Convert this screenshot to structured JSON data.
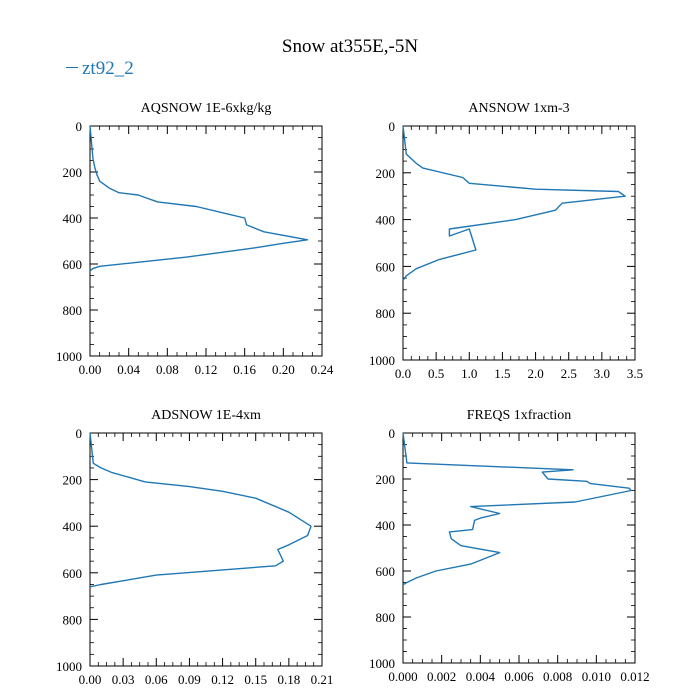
{
  "figure": {
    "title": "Snow at355E,-5N",
    "legend": {
      "label": "zt92_2",
      "color": "#1f77b4"
    }
  },
  "chart_data": [
    {
      "type": "line",
      "title": "AQSNOW  1E-6xkg/kg",
      "xlim": [
        0,
        0.24
      ],
      "xticks": [
        0,
        0.04,
        0.08,
        0.12,
        0.16,
        0.2,
        0.24
      ],
      "xtick_labels": [
        "0.00",
        "0.04",
        "0.08",
        "0.12",
        "0.16",
        "0.20",
        "0.24"
      ],
      "ylim": [
        1000,
        0
      ],
      "yticks": [
        0,
        200,
        400,
        600,
        800,
        1000
      ],
      "ytick_labels": [
        "0",
        "200",
        "400",
        "600",
        "800",
        "1000"
      ],
      "series": [
        {
          "name": "zt92_2",
          "color": "#1f77b4",
          "x": [
            0,
            0.003,
            0.005,
            0.007,
            0.01,
            0.02,
            0.03,
            0.05,
            0.063,
            0.07,
            0.11,
            0.14,
            0.16,
            0.162,
            0.18,
            0.225,
            0.2,
            0.17,
            0.1,
            0.01,
            0.003,
            0
          ],
          "y": [
            0,
            140,
            180,
            210,
            240,
            270,
            290,
            300,
            320,
            330,
            350,
            380,
            400,
            430,
            460,
            495,
            510,
            530,
            570,
            610,
            620,
            630
          ]
        }
      ]
    },
    {
      "type": "line",
      "title": "ANSNOW  1xm-3",
      "xlim": [
        0,
        3.5
      ],
      "xticks": [
        0,
        0.5,
        1.0,
        1.5,
        2.0,
        2.5,
        3.0,
        3.5
      ],
      "xtick_labels": [
        "0.0",
        "0.5",
        "1.0",
        "1.5",
        "2.0",
        "2.5",
        "3.0",
        "3.5"
      ],
      "ylim": [
        1000,
        0
      ],
      "yticks": [
        0,
        200,
        400,
        600,
        800,
        1000
      ],
      "ytick_labels": [
        "0",
        "200",
        "400",
        "600",
        "800",
        "1000"
      ],
      "series": [
        {
          "name": "zt92_2",
          "color": "#1f77b4",
          "x": [
            0,
            0.05,
            0.2,
            0.3,
            0.9,
            1.0,
            2.0,
            3.25,
            3.35,
            2.4,
            2.3,
            1.7,
            0.7,
            0.7,
            1.0,
            1.1,
            0.55,
            0.2,
            0.05,
            0
          ],
          "y": [
            0,
            120,
            160,
            180,
            220,
            245,
            270,
            280,
            300,
            330,
            360,
            400,
            440,
            470,
            440,
            530,
            570,
            610,
            640,
            660
          ]
        }
      ]
    },
    {
      "type": "line",
      "title": "ADSNOW  1E-4xm",
      "xlim": [
        0,
        0.21
      ],
      "xticks": [
        0,
        0.03,
        0.06,
        0.09,
        0.12,
        0.15,
        0.18,
        0.21
      ],
      "xtick_labels": [
        "0.00",
        "0.03",
        "0.06",
        "0.09",
        "0.12",
        "0.15",
        "0.18",
        "0.21"
      ],
      "ylim": [
        1000,
        0
      ],
      "yticks": [
        0,
        200,
        400,
        600,
        800,
        1000
      ],
      "ytick_labels": [
        "0",
        "200",
        "400",
        "600",
        "800",
        "1000"
      ],
      "series": [
        {
          "name": "zt92_2",
          "color": "#1f77b4",
          "x": [
            0,
            0.003,
            0.01,
            0.02,
            0.05,
            0.09,
            0.12,
            0.15,
            0.18,
            0.19,
            0.2,
            0.197,
            0.18,
            0.17,
            0.175,
            0.168,
            0.06,
            0.01,
            0
          ],
          "y": [
            0,
            130,
            150,
            170,
            210,
            230,
            250,
            280,
            340,
            370,
            400,
            440,
            480,
            500,
            550,
            570,
            610,
            650,
            660
          ]
        }
      ]
    },
    {
      "type": "line",
      "title": "FREQS  1xfraction",
      "xlim": [
        0,
        0.012
      ],
      "xticks": [
        0,
        0.002,
        0.004,
        0.006,
        0.008,
        0.01,
        0.012
      ],
      "xtick_labels": [
        "0.000",
        "0.002",
        "0.004",
        "0.006",
        "0.008",
        "0.010",
        "0.012"
      ],
      "ylim": [
        1000,
        0
      ],
      "yticks": [
        0,
        200,
        400,
        600,
        800,
        1000
      ],
      "ytick_labels": [
        "0",
        "200",
        "400",
        "600",
        "800",
        "1000"
      ],
      "series": [
        {
          "name": "zt92_2",
          "color": "#1f77b4",
          "x": [
            0,
            0.0002,
            0.0088,
            0.0072,
            0.0075,
            0.0095,
            0.0097,
            0.0117,
            0.0118,
            0.0089,
            0.0035,
            0.005,
            0.004,
            0.0037,
            0.0036,
            0.0024,
            0.0025,
            0.003,
            0.005,
            0.0035,
            0.0017,
            0.0007,
            0.0002,
            0
          ],
          "y": [
            0,
            130,
            160,
            170,
            200,
            210,
            220,
            240,
            250,
            300,
            320,
            350,
            370,
            380,
            420,
            430,
            460,
            490,
            520,
            570,
            600,
            630,
            650,
            660
          ]
        }
      ]
    }
  ]
}
